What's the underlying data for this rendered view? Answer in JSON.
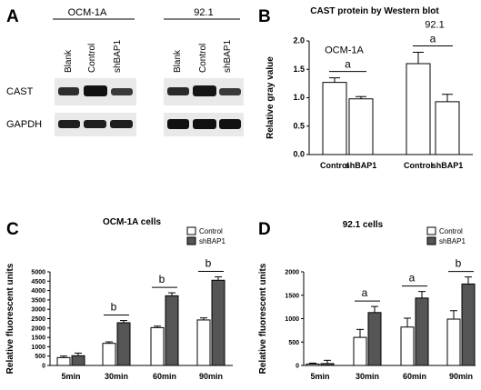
{
  "panels": {
    "A": {
      "label": "A",
      "groups": [
        "OCM-1A",
        "92.1"
      ],
      "lanes": [
        "Blank",
        "Control",
        "shBAP1",
        "Blank",
        "Control",
        "shBAP1"
      ],
      "rows": [
        "CAST",
        "GAPDH"
      ]
    },
    "C": {
      "label": "C"
    },
    "D": {
      "label": "D"
    }
  },
  "chart_data": [
    {
      "panel": "B",
      "type": "bar",
      "title": "CAST protein by Western blot",
      "ylabel": "Relative gray value",
      "ylim": [
        0,
        2.0
      ],
      "yticks": [
        "0.0",
        "0.5",
        "1.0",
        "1.5",
        "2.0"
      ],
      "categories": [
        "Control",
        "shBAP1",
        "Control",
        "shBAP1"
      ],
      "values": [
        1.27,
        0.98,
        1.6,
        0.93
      ],
      "errors": [
        0.08,
        0.04,
        0.2,
        0.13
      ],
      "group_labels": [
        "OCM-1A",
        "92.1"
      ],
      "annotations": [
        "a",
        "a"
      ],
      "grid": false
    },
    {
      "panel": "C",
      "type": "bar",
      "title": "OCM-1A cells",
      "ylabel": "Relative fluorescent units",
      "ylim": [
        0,
        5000
      ],
      "yticks": [
        "0",
        "500",
        "1000",
        "1500",
        "2000",
        "2500",
        "3000",
        "3500",
        "4000",
        "4500",
        "5000"
      ],
      "categories": [
        "5min",
        "30min",
        "60min",
        "90min"
      ],
      "series": [
        {
          "name": "Control",
          "values": [
            420,
            1180,
            2020,
            2430
          ],
          "errors": [
            80,
            80,
            80,
            110
          ],
          "color": "#ffffff"
        },
        {
          "name": "shBAP1",
          "values": [
            520,
            2280,
            3720,
            4550
          ],
          "errors": [
            140,
            120,
            160,
            180
          ],
          "color": "#555555"
        }
      ],
      "annotations": [
        "b",
        "b",
        "b"
      ],
      "legend": "top-right",
      "grid": false
    },
    {
      "panel": "D",
      "type": "bar",
      "title": "92.1 cells",
      "ylabel": "Relative fluorescent units",
      "ylim": [
        0,
        2000
      ],
      "yticks": [
        "0",
        "500",
        "1000",
        "1500",
        "2000"
      ],
      "categories": [
        "5min",
        "30min",
        "60min",
        "90min"
      ],
      "series": [
        {
          "name": "Control",
          "values": [
            30,
            600,
            820,
            990
          ],
          "errors": [
            20,
            170,
            190,
            180
          ],
          "color": "#ffffff"
        },
        {
          "name": "shBAP1",
          "values": [
            40,
            1130,
            1440,
            1740
          ],
          "errors": [
            70,
            130,
            140,
            150
          ],
          "color": "#555555"
        }
      ],
      "annotations": [
        "a",
        "a",
        "b"
      ],
      "legend": "top-right",
      "grid": false
    }
  ]
}
